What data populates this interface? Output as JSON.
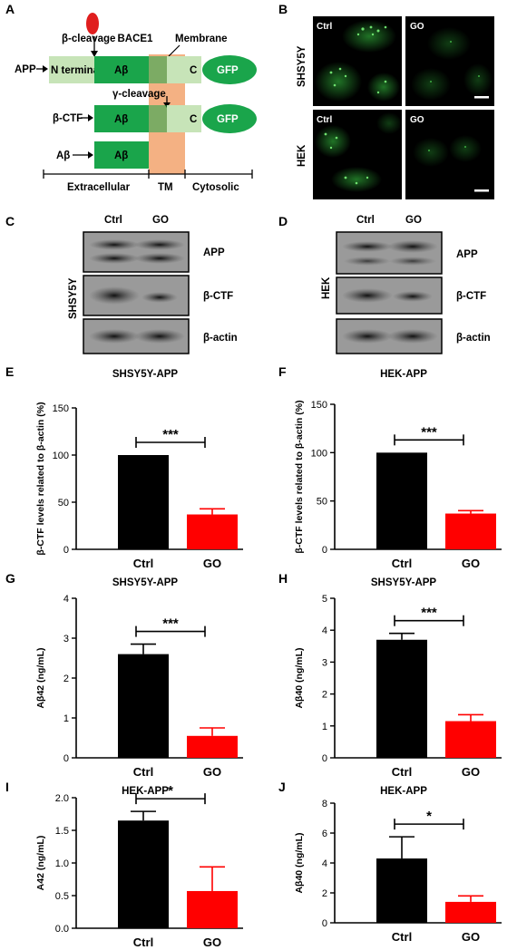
{
  "panels": {
    "A": {
      "letter": "A",
      "labels": {
        "beta_cleavage": "β-cleavage",
        "bace1": "BACE1",
        "membrane": "Membrane",
        "app": "APP",
        "n_terminal": "N terminal",
        "abeta": "Aβ",
        "c": "C",
        "gfp": "GFP",
        "gamma_cleavage": "γ-cleavage",
        "beta_ctf": "β-CTF",
        "abeta_row": "Aβ",
        "extracellular": "Extracellular",
        "tm": "TM",
        "cytosolic": "Cytosolic"
      },
      "colors": {
        "light_green": "#c7e4b8",
        "dark_green": "#1aa54b",
        "membrane": "#f4b183",
        "bace1": "#e01e1e"
      }
    },
    "B": {
      "letter": "B",
      "rows": [
        "SHSY5Y",
        "HEK"
      ],
      "cols": [
        "Ctrl",
        "GO"
      ]
    },
    "C": {
      "letter": "C",
      "cell_line": "SHSY5Y",
      "lanes": [
        "Ctrl",
        "GO"
      ],
      "bands": [
        "APP",
        "β-CTF",
        "β-actin"
      ]
    },
    "D": {
      "letter": "D",
      "cell_line": "HEK",
      "lanes": [
        "Ctrl",
        "GO"
      ],
      "bands": [
        "APP",
        "β-CTF",
        "β-actin"
      ]
    }
  },
  "chart_data": [
    {
      "panel": "E",
      "type": "bar",
      "title": "SHSY5Y-APP",
      "ylabel": "β-CTF levels related to β-actin (%)",
      "xlabel": "",
      "categories": [
        "Ctrl",
        "GO"
      ],
      "values": [
        100,
        37
      ],
      "errors": [
        0,
        6
      ],
      "ylim": [
        0,
        150
      ],
      "yticks": [
        "0",
        "50",
        "100",
        "150"
      ],
      "significance": "***",
      "colors": [
        "#000000",
        "#ff0000"
      ]
    },
    {
      "panel": "F",
      "type": "bar",
      "title": "HEK-APP",
      "ylabel": "β-CTF levels related to β-actin (%)",
      "xlabel": "",
      "categories": [
        "Ctrl",
        "GO"
      ],
      "values": [
        100,
        37
      ],
      "errors": [
        0,
        3
      ],
      "ylim": [
        0,
        150
      ],
      "yticks": [
        "0",
        "50",
        "100",
        "150"
      ],
      "significance": "***",
      "colors": [
        "#000000",
        "#ff0000"
      ]
    },
    {
      "panel": "G",
      "type": "bar",
      "title": "SHSY5Y-APP",
      "ylabel": "Aβ42 (ng/mL)",
      "xlabel": "",
      "categories": [
        "Ctrl",
        "GO"
      ],
      "values": [
        2.6,
        0.55
      ],
      "errors": [
        0.25,
        0.2
      ],
      "ylim": [
        0,
        4
      ],
      "yticks": [
        "0",
        "1",
        "2",
        "3",
        "4"
      ],
      "significance": "***",
      "colors": [
        "#000000",
        "#ff0000"
      ]
    },
    {
      "panel": "H",
      "type": "bar",
      "title": "SHSY5Y-APP",
      "ylabel": "Aβ40 (ng/mL)",
      "xlabel": "",
      "categories": [
        "Ctrl",
        "GO"
      ],
      "values": [
        3.7,
        1.15
      ],
      "errors": [
        0.2,
        0.2
      ],
      "ylim": [
        0,
        5
      ],
      "yticks": [
        "0",
        "1",
        "2",
        "3",
        "4",
        "5"
      ],
      "significance": "***",
      "colors": [
        "#000000",
        "#ff0000"
      ]
    },
    {
      "panel": "I",
      "type": "bar",
      "title": "HEK-APP",
      "ylabel": "A42 (ng/mL)",
      "xlabel": "",
      "categories": [
        "Ctrl",
        "GO"
      ],
      "values": [
        1.65,
        0.57
      ],
      "errors": [
        0.14,
        0.37
      ],
      "ylim": [
        0,
        2
      ],
      "yticks": [
        "0.0",
        "0.5",
        "1.0",
        "1.5",
        "2.0"
      ],
      "significance": "*",
      "colors": [
        "#000000",
        "#ff0000"
      ]
    },
    {
      "panel": "J",
      "type": "bar",
      "title": "HEK-APP",
      "ylabel": "Aβ40 (ng/mL)",
      "xlabel": "",
      "categories": [
        "Ctrl",
        "GO"
      ],
      "values": [
        4.3,
        1.4
      ],
      "errors": [
        1.45,
        0.4
      ],
      "ylim": [
        0,
        8
      ],
      "yticks": [
        "0",
        "2",
        "4",
        "6",
        "8"
      ],
      "significance": "*",
      "colors": [
        "#000000",
        "#ff0000"
      ]
    }
  ]
}
